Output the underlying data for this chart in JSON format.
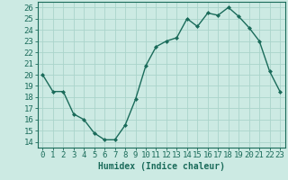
{
  "x": [
    0,
    1,
    2,
    3,
    4,
    5,
    6,
    7,
    8,
    9,
    10,
    11,
    12,
    13,
    14,
    15,
    16,
    17,
    18,
    19,
    20,
    21,
    22,
    23
  ],
  "y": [
    20.0,
    18.5,
    18.5,
    16.5,
    16.0,
    14.8,
    14.2,
    14.2,
    15.5,
    17.8,
    20.8,
    22.5,
    23.0,
    23.3,
    25.0,
    24.3,
    25.5,
    25.3,
    26.0,
    25.2,
    24.2,
    23.0,
    20.3,
    18.5
  ],
  "line_color": "#1a6b5a",
  "marker": "D",
  "marker_size": 2.0,
  "bg_color": "#cceae3",
  "grid_color": "#aad4cb",
  "xlabel": "Humidex (Indice chaleur)",
  "xlim": [
    -0.5,
    23.5
  ],
  "ylim": [
    13.5,
    26.5
  ],
  "xticks": [
    0,
    1,
    2,
    3,
    4,
    5,
    6,
    7,
    8,
    9,
    10,
    11,
    12,
    13,
    14,
    15,
    16,
    17,
    18,
    19,
    20,
    21,
    22,
    23
  ],
  "yticks": [
    14,
    15,
    16,
    17,
    18,
    19,
    20,
    21,
    22,
    23,
    24,
    25,
    26
  ],
  "xlabel_fontsize": 7,
  "tick_fontsize": 6.5
}
